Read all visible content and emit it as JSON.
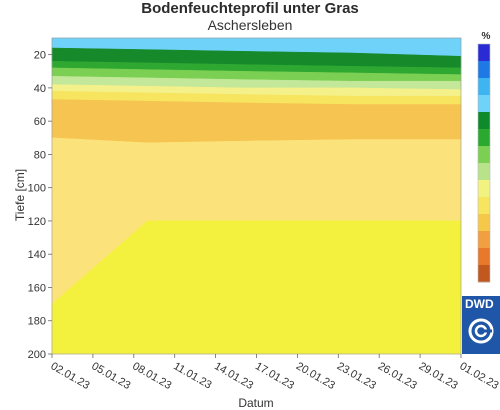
{
  "chart_data": {
    "type": "heatmap",
    "title": "Bodenfeuchteprofil unter Gras",
    "subtitle": "Aschersleben",
    "xlabel": "Datum",
    "ylabel": "Tiefe [cm]",
    "x_tick_labels": [
      "02.01.23",
      "05.01.23",
      "08.01.23",
      "11.01.23",
      "14.01.23",
      "17.01.23",
      "20.01.23",
      "23.01.23",
      "26.01.23",
      "29.01.23",
      "01.02.23"
    ],
    "x_range": [
      "2023-01-02",
      "2023-02-01"
    ],
    "y_tick_labels": [
      "20",
      "40",
      "60",
      "80",
      "100",
      "120",
      "140",
      "160",
      "180",
      "200"
    ],
    "y_range": [
      10,
      200
    ],
    "y_reversed": true,
    "colorbar": {
      "title": "%",
      "colors": [
        "#2b2bd6",
        "#1e78e6",
        "#3eb4f0",
        "#6fd2f8",
        "#0f8a2b",
        "#2aa830",
        "#7bcf52",
        "#b8e38a",
        "#f2f280",
        "#f7e45f",
        "#f6c84a",
        "#f0a040",
        "#e8782a",
        "#c05820"
      ]
    },
    "layers": [
      {
        "time": "2023-01-02",
        "depth_boundaries_cm": [
          10,
          16,
          24,
          28,
          33,
          38,
          42,
          47,
          70,
          170,
          200
        ]
      },
      {
        "time": "2023-01-09",
        "depth_boundaries_cm": [
          10,
          17,
          25,
          29,
          34,
          39,
          43,
          48,
          73,
          120,
          200
        ]
      },
      {
        "time": "2023-01-16",
        "depth_boundaries_cm": [
          10,
          18,
          26,
          30,
          35,
          40,
          44,
          49,
          72,
          120,
          200
        ]
      },
      {
        "time": "2023-01-24",
        "depth_boundaries_cm": [
          10,
          19,
          27,
          31,
          36,
          40,
          45,
          50,
          71,
          120,
          200
        ]
      },
      {
        "time": "2023-02-01",
        "depth_boundaries_cm": [
          10,
          21,
          28,
          32,
          36,
          41,
          45,
          50,
          71,
          120,
          200
        ]
      }
    ],
    "band_colors": [
      "#6fd2f8",
      "#168a2a",
      "#2fa832",
      "#7bcf52",
      "#c3e89a",
      "#f4f08a",
      "#f7e45f",
      "#f6c450",
      "#fbe27a",
      "#f4f03e"
    ]
  },
  "logo": {
    "text": "DWD"
  },
  "colors": {
    "plot_border": "#cccccc",
    "logo_blue": "#1f56a8"
  }
}
